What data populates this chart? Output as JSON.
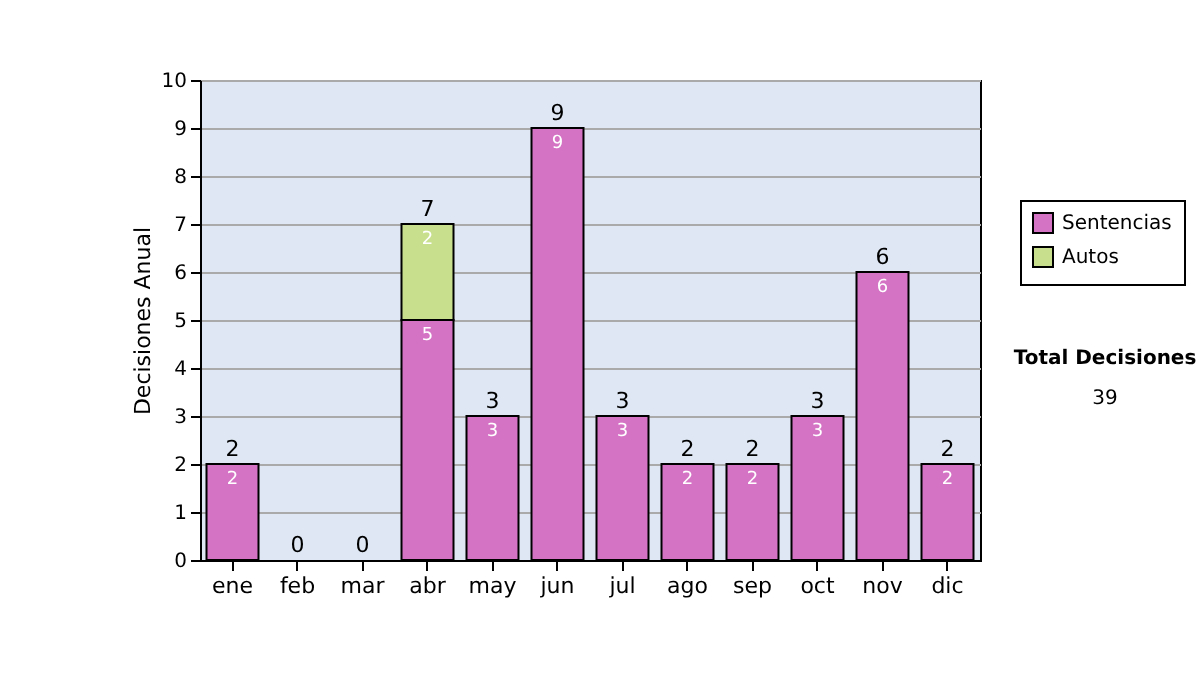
{
  "chart_data": {
    "type": "bar",
    "stacked": true,
    "ylabel": "Decisiones Anual",
    "categories": [
      "ene",
      "feb",
      "mar",
      "abr",
      "may",
      "jun",
      "jul",
      "ago",
      "sep",
      "oct",
      "nov",
      "dic"
    ],
    "series": [
      {
        "name": "Sentencias",
        "color": "#d473c4",
        "values": [
          2,
          0,
          0,
          5,
          3,
          9,
          3,
          2,
          2,
          3,
          6,
          2
        ],
        "value_labels": [
          "2",
          null,
          null,
          "5",
          "3",
          "9",
          "3",
          "2",
          "2",
          "3",
          "6",
          "2"
        ]
      },
      {
        "name": "Autos",
        "color": "#c8e08e",
        "values": [
          0,
          0,
          0,
          2,
          0,
          0,
          0,
          0,
          0,
          0,
          0,
          0
        ],
        "value_labels": [
          null,
          null,
          null,
          "2",
          null,
          null,
          null,
          null,
          null,
          null,
          null,
          null
        ]
      }
    ],
    "totals": [
      "2",
      "0",
      "0",
      "7",
      "3",
      "9",
      "3",
      "2",
      "2",
      "3",
      "6",
      "2"
    ],
    "ylim": [
      0,
      10
    ],
    "yticks": [
      0,
      1,
      2,
      3,
      4,
      5,
      6,
      7,
      8,
      9,
      10
    ],
    "grid": "y",
    "legend": "right",
    "annotations": [
      "Total Decisiones",
      "39"
    ]
  }
}
